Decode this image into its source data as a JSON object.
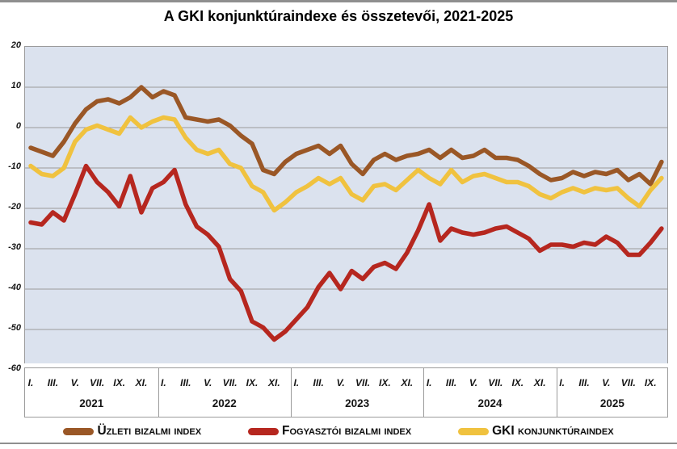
{
  "title": "A GKI konjunktúraindexe és összetevői, 2021-2025",
  "colors": {
    "business": "#9a5726",
    "consumer": "#b6271f",
    "gki": "#f0c23f",
    "plot_bg": "#dbe2ee",
    "grid": "#9b9b9b",
    "rule": "#8f8f8f",
    "text": "#151515"
  },
  "chart_data": {
    "type": "line",
    "title": "A GKI konjunktúraindexe és összetevői, 2021-2025",
    "xlabel": "",
    "ylabel": "",
    "ylim": [
      -60,
      20
    ],
    "y_ticks": [
      20,
      10,
      0,
      -10,
      -20,
      -30,
      -40,
      -50,
      -60
    ],
    "grid": true,
    "legend_position": "bottom",
    "x_unit": "month",
    "x_start": "2021-01",
    "x_end": "2025-10",
    "years": [
      {
        "label": "2021",
        "months": 12,
        "month_tick_labels": [
          "I.",
          "III.",
          "V.",
          "VII.",
          "IX.",
          "XI."
        ]
      },
      {
        "label": "2022",
        "months": 12,
        "month_tick_labels": [
          "I.",
          "III.",
          "V.",
          "VII.",
          "IX.",
          "XI."
        ]
      },
      {
        "label": "2023",
        "months": 12,
        "month_tick_labels": [
          "I.",
          "III.",
          "V.",
          "VII.",
          "IX.",
          "XI."
        ]
      },
      {
        "label": "2024",
        "months": 12,
        "month_tick_labels": [
          "I.",
          "III.",
          "V.",
          "VII.",
          "IX.",
          "XI."
        ]
      },
      {
        "label": "2025",
        "months": 10,
        "month_tick_labels": [
          "I.",
          "III.",
          "V.",
          "VII.",
          "IX."
        ]
      }
    ],
    "series": [
      {
        "name": "Üzleti bizalmi index",
        "color": "#9a5726",
        "values": [
          -5,
          -6,
          -7,
          -3.5,
          1,
          4.5,
          6.5,
          7,
          6,
          7.5,
          10,
          7.5,
          9,
          8,
          2.5,
          2,
          1.5,
          2,
          0.5,
          -2,
          -4,
          -10.5,
          -11.5,
          -8.5,
          -6.5,
          -5.5,
          -4.5,
          -6.5,
          -4.5,
          -9,
          -11.5,
          -8,
          -6.5,
          -8,
          -7,
          -6.5,
          -5.5,
          -7.5,
          -5.5,
          -7.5,
          -7,
          -5.5,
          -7.5,
          -7.5,
          -8,
          -9.5,
          -11.5,
          -13,
          -12.5,
          -11,
          -12,
          -11,
          -11.5,
          -10.5,
          -13,
          -11.5,
          -14,
          -8.5
        ]
      },
      {
        "name": "Fogyasztói bizalmi index",
        "color": "#b6271f",
        "values": [
          -23.5,
          -24,
          -21,
          -23,
          -16.5,
          -9.5,
          -13.5,
          -16,
          -19.5,
          -12,
          -21,
          -15,
          -13.5,
          -10.5,
          -19,
          -24.5,
          -26.5,
          -29.5,
          -37.5,
          -40.5,
          -48,
          -49.5,
          -52.5,
          -50.5,
          -47.5,
          -44.5,
          -39.5,
          -36,
          -40,
          -35.5,
          -37.5,
          -34.5,
          -33.5,
          -35,
          -31,
          -25.5,
          -19,
          -28,
          -25,
          -26,
          -26.5,
          -26,
          -25,
          -24.5,
          -26,
          -27.5,
          -30.5,
          -29,
          -29,
          -29.5,
          -28.5,
          -29,
          -27,
          -28.5,
          -31.5,
          -31.5,
          -28.5,
          -25
        ]
      },
      {
        "name": "GKI konjunktúraindex",
        "color": "#f0c23f",
        "values": [
          -9.5,
          -11.5,
          -12,
          -10,
          -3.5,
          -0.5,
          0.5,
          -0.5,
          -1.5,
          2.5,
          0,
          1.5,
          2.5,
          2,
          -2.5,
          -5.5,
          -6.5,
          -5.5,
          -9,
          -10,
          -14.5,
          -16,
          -20.5,
          -18.5,
          -16,
          -14.5,
          -12.5,
          -14,
          -12.5,
          -16.5,
          -18,
          -14.5,
          -14,
          -15.5,
          -13,
          -10.5,
          -12.5,
          -14,
          -10.5,
          -13.5,
          -12,
          -11.5,
          -12.5,
          -13.5,
          -13.5,
          -14.5,
          -16.5,
          -17.5,
          -16,
          -15,
          -16,
          -15,
          -15.5,
          -15,
          -17.5,
          -19.5,
          -15.5,
          -12.5
        ]
      }
    ]
  },
  "legend": {
    "items": [
      {
        "label": "Üzleti bizalmi index",
        "color": "#9a5726"
      },
      {
        "label": "Fogyasztói bizalmi index",
        "color": "#b6271f"
      },
      {
        "label": "GKI konjunktúraindex",
        "color": "#f0c23f"
      }
    ]
  }
}
